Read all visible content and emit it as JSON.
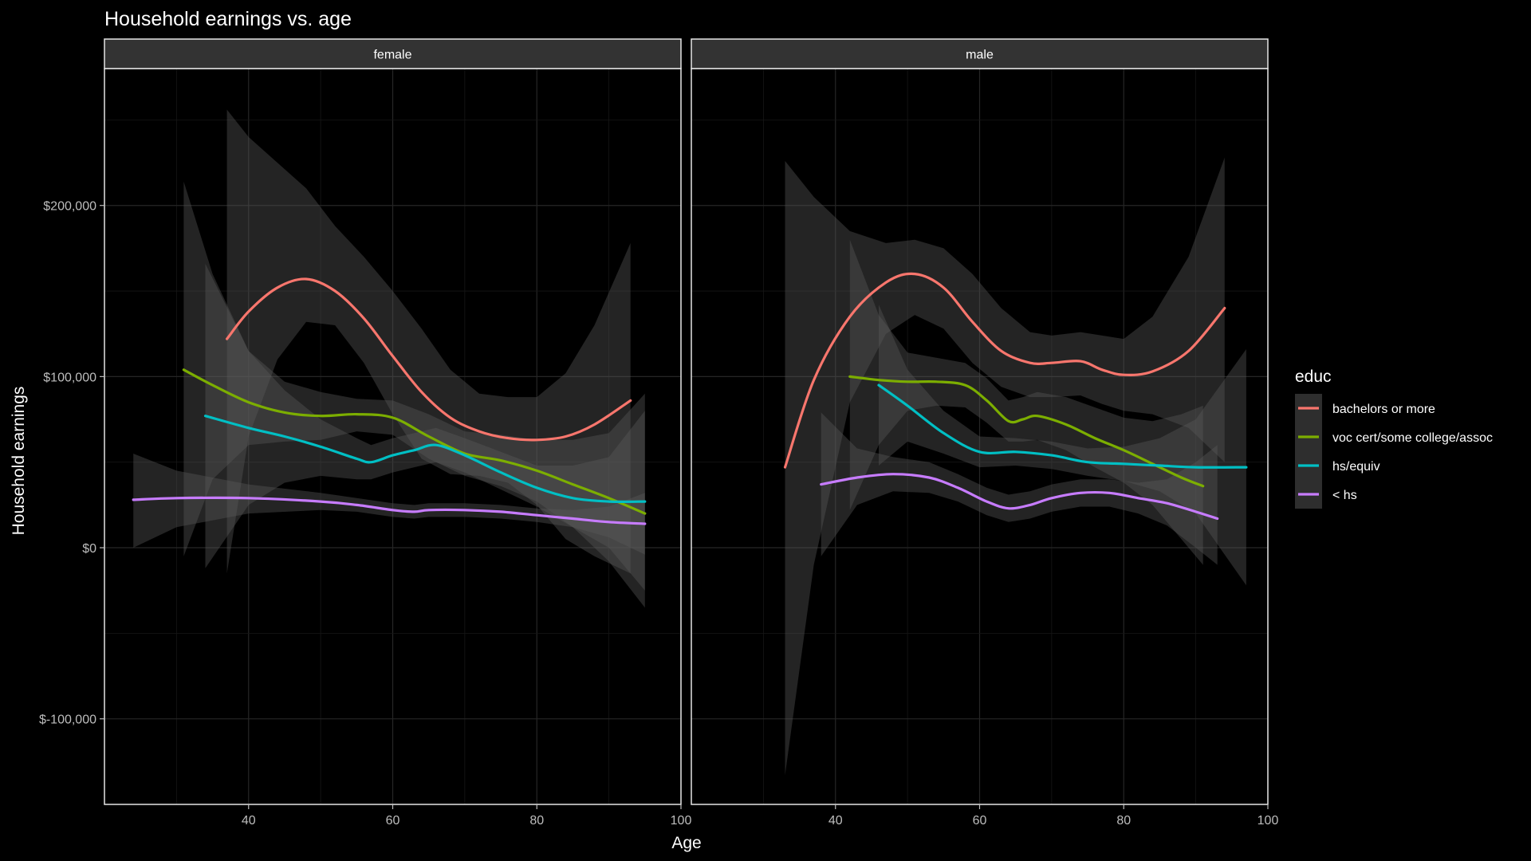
{
  "chart_data": {
    "type": "line",
    "title": "Household earnings vs. age",
    "xlabel": "Age",
    "ylabel": "Household earnings",
    "xlim": [
      20,
      100
    ],
    "ylim": [
      -150000,
      280000
    ],
    "x_ticks": [
      40,
      60,
      80,
      100
    ],
    "y_ticks": [
      -100000,
      0,
      100000,
      200000
    ],
    "y_tick_labels": [
      "$-100,000",
      "$0",
      "$100,000",
      "$200,000"
    ],
    "grid": true,
    "legend": {
      "title": "educ",
      "position": "right"
    },
    "colors": {
      "background": "#000000",
      "strip": "#333333",
      "ribbon": "#595959",
      "grid": "#1f1f1f",
      "border": "#e6e6e6"
    },
    "series_styles": [
      {
        "key": "bachelors or more",
        "color": "#F8766D"
      },
      {
        "key": "voc cert/some college/assoc",
        "color": "#7CAE00"
      },
      {
        "key": "hs/equiv",
        "color": "#00BFC4"
      },
      {
        "key": "< hs",
        "color": "#C77CFF"
      }
    ],
    "panels": [
      {
        "label": "female",
        "series": [
          {
            "name": "bachelors or more",
            "x": [
              37,
              40,
              44,
              48,
              52,
              56,
              60,
              64,
              68,
              72,
              76,
              80,
              84,
              88,
              93
            ],
            "y": [
              122000,
              138000,
              152000,
              157000,
              150000,
              134000,
              112000,
              91000,
              76000,
              68000,
              64000,
              63000,
              65000,
              72000,
              86000
            ],
            "lo": [
              -15000,
              65000,
              110000,
              132000,
              130000,
              108000,
              78000,
              52000,
              43000,
              42000,
              38000,
              25000,
              5000,
              -5000,
              -15000
            ],
            "hi": [
              256000,
              240000,
              225000,
              210000,
              188000,
              170000,
              150000,
              128000,
              104000,
              90000,
              88000,
              88000,
              102000,
              130000,
              178000
            ]
          },
          {
            "name": "voc cert/some college/assoc",
            "x": [
              31,
              35,
              40,
              45,
              50,
              55,
              60,
              65,
              70,
              75,
              80,
              85,
              90,
              95
            ],
            "y": [
              104000,
              95000,
              85000,
              79000,
              77000,
              78000,
              76000,
              65000,
              55000,
              51000,
              45000,
              37000,
              29000,
              20000
            ],
            "lo": [
              -5000,
              40000,
              60000,
              62000,
              63000,
              68000,
              66000,
              52000,
              42000,
              36000,
              27000,
              12000,
              -8000,
              -35000
            ],
            "hi": [
              214000,
              160000,
              115000,
              97000,
              91000,
              87000,
              86000,
              78000,
              68000,
              66000,
              63000,
              63000,
              67000,
              90000
            ]
          },
          {
            "name": "hs/equiv",
            "x": [
              34,
              40,
              45,
              50,
              55,
              57,
              60,
              63,
              66,
              70,
              75,
              80,
              85,
              90,
              95
            ],
            "y": [
              77000,
              70000,
              65000,
              59000,
              52000,
              50000,
              54000,
              57000,
              60000,
              54000,
              44000,
              35000,
              29000,
              27000,
              27000
            ],
            "lo": [
              -12000,
              25000,
              38000,
              42000,
              40000,
              40000,
              44000,
              47000,
              50000,
              44000,
              34000,
              24000,
              12000,
              0,
              -25000
            ],
            "hi": [
              166000,
              115000,
              92000,
              75000,
              64000,
              60000,
              64000,
              67000,
              70000,
              64000,
              56000,
              48000,
              48000,
              53000,
              80000
            ]
          },
          {
            "name": "< hs",
            "x": [
              24,
              30,
              40,
              50,
              55,
              60,
              63,
              65,
              70,
              75,
              80,
              85,
              90,
              95
            ],
            "y": [
              28000,
              29000,
              29000,
              27000,
              25000,
              22000,
              21000,
              22000,
              22000,
              21000,
              19000,
              17000,
              15000,
              14000
            ],
            "lo": [
              0,
              12000,
              20000,
              22000,
              21000,
              18000,
              17000,
              18000,
              18000,
              17000,
              15000,
              12000,
              6000,
              -4000
            ],
            "hi": [
              55000,
              45000,
              37000,
              32000,
              29000,
              26000,
              25000,
              26000,
              26000,
              25000,
              23000,
              22000,
              24000,
              32000
            ]
          }
        ]
      },
      {
        "label": "male",
        "series": [
          {
            "name": "bachelors or more",
            "x": [
              33,
              37,
              42,
              47,
              51,
              55,
              59,
              63,
              67,
              70,
              74,
              77,
              80,
              84,
              89,
              94
            ],
            "y": [
              47000,
              98000,
              135000,
              155000,
              160000,
              152000,
              132000,
              115000,
              108000,
              108000,
              109000,
              104000,
              101000,
              103000,
              115000,
              140000
            ],
            "lo": [
              -133000,
              -10000,
              85000,
              125000,
              136000,
              128000,
              108000,
              94000,
              88000,
              88000,
              89000,
              84000,
              80000,
              78000,
              70000,
              50000
            ],
            "hi": [
              226000,
              205000,
              185000,
              178000,
              180000,
              175000,
              160000,
              140000,
              126000,
              124000,
              126000,
              124000,
              122000,
              135000,
              170000,
              228000
            ]
          },
          {
            "name": "voc cert/some college/assoc",
            "x": [
              42,
              46,
              50,
              54,
              58,
              61,
              64,
              66,
              68,
              72,
              76,
              80,
              84,
              88,
              91
            ],
            "y": [
              100000,
              98000,
              97000,
              97000,
              95000,
              86000,
              74000,
              75000,
              77000,
              72000,
              64000,
              57000,
              49000,
              41000,
              36000
            ],
            "lo": [
              22000,
              60000,
              80000,
              83000,
              82000,
              73000,
              62000,
              62000,
              63000,
              57000,
              47000,
              38000,
              25000,
              5000,
              -10000
            ],
            "hi": [
              180000,
              136000,
              114000,
              111000,
              108000,
              99000,
              86000,
              88000,
              91000,
              88000,
              82000,
              76000,
              74000,
              78000,
              83000
            ]
          },
          {
            "name": "hs/equiv",
            "x": [
              46,
              50,
              55,
              60,
              65,
              70,
              75,
              80,
              85,
              90,
              97
            ],
            "y": [
              95000,
              83000,
              67000,
              56000,
              56000,
              54000,
              50000,
              49000,
              48000,
              47000,
              47000
            ],
            "lo": [
              48000,
              62000,
              55000,
              47000,
              48000,
              46000,
              42000,
              39000,
              33000,
              20000,
              -22000
            ],
            "hi": [
              142000,
              104000,
              80000,
              65000,
              64000,
              62000,
              58000,
              59000,
              64000,
              75000,
              116000
            ]
          },
          {
            "name": "< hs",
            "x": [
              38,
              43,
              48,
              53,
              57,
              61,
              64,
              67,
              70,
              74,
              78,
              82,
              86,
              90,
              93
            ],
            "y": [
              37000,
              41000,
              43000,
              41000,
              35000,
              27000,
              23000,
              25000,
              29000,
              32000,
              32000,
              29000,
              26000,
              21000,
              17000
            ],
            "lo": [
              -5000,
              25000,
              33000,
              32000,
              27000,
              19000,
              15000,
              17000,
              21000,
              24000,
              24000,
              20000,
              13000,
              0,
              -10000
            ],
            "hi": [
              79000,
              58000,
              53000,
              50000,
              43000,
              35000,
              31000,
              33000,
              37000,
              40000,
              40000,
              38000,
              40000,
              50000,
              60000
            ]
          }
        ]
      }
    ]
  }
}
